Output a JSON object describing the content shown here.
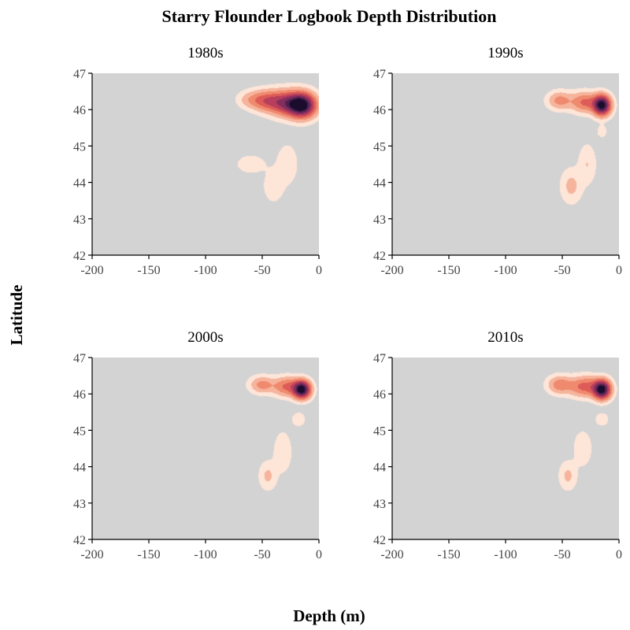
{
  "figure": {
    "title": "Starry Flounder Logbook Depth Distribution",
    "xlabel": "Depth (m)",
    "ylabel": "Latitude"
  },
  "colors": {
    "panel_bg": "#d3d3d3",
    "levels": [
      "#fde5d8",
      "#f6b49c",
      "#ef8a6e",
      "#de5c58",
      "#b73e5c",
      "#842e5e",
      "#4e2150",
      "#1b0c2e"
    ]
  },
  "chart_data": [
    {
      "type": "density2d",
      "panel_title": "1980s",
      "xlim": [
        -200,
        0
      ],
      "ylim": [
        42,
        47
      ],
      "xticks": [
        -200,
        -150,
        -100,
        -50,
        0
      ],
      "yticks": [
        42,
        43,
        44,
        45,
        46,
        47
      ],
      "kernels": [
        {
          "x": -15,
          "y": 46.12,
          "sx": 8,
          "sy": 0.22,
          "w": 1.0
        },
        {
          "x": -30,
          "y": 46.18,
          "sx": 10,
          "sy": 0.22,
          "w": 0.55
        },
        {
          "x": -48,
          "y": 46.25,
          "sx": 9,
          "sy": 0.18,
          "w": 0.35
        },
        {
          "x": -62,
          "y": 46.28,
          "sx": 7,
          "sy": 0.15,
          "w": 0.1
        },
        {
          "x": -28,
          "y": 44.5,
          "sx": 6,
          "sy": 0.35,
          "w": 0.09
        },
        {
          "x": -40,
          "y": 43.9,
          "sx": 6,
          "sy": 0.3,
          "w": 0.08
        },
        {
          "x": -60,
          "y": 44.5,
          "sx": 9,
          "sy": 0.18,
          "w": 0.07
        }
      ]
    },
    {
      "type": "density2d",
      "panel_title": "1990s",
      "xlim": [
        -200,
        0
      ],
      "ylim": [
        42,
        47
      ],
      "xticks": [
        -200,
        -150,
        -100,
        -50,
        0
      ],
      "yticks": [
        42,
        43,
        44,
        45,
        46,
        47
      ],
      "kernels": [
        {
          "x": -15,
          "y": 46.12,
          "sx": 5,
          "sy": 0.18,
          "w": 1.0
        },
        {
          "x": -30,
          "y": 46.2,
          "sx": 8,
          "sy": 0.18,
          "w": 0.35
        },
        {
          "x": -52,
          "y": 46.25,
          "sx": 7,
          "sy": 0.16,
          "w": 0.25
        },
        {
          "x": -15,
          "y": 45.4,
          "sx": 3,
          "sy": 0.12,
          "w": 0.07
        },
        {
          "x": -28,
          "y": 44.5,
          "sx": 5,
          "sy": 0.35,
          "w": 0.1
        },
        {
          "x": -42,
          "y": 43.9,
          "sx": 6,
          "sy": 0.3,
          "w": 0.13
        }
      ]
    },
    {
      "type": "density2d",
      "panel_title": "2000s",
      "xlim": [
        -200,
        0
      ],
      "ylim": [
        42,
        47
      ],
      "xticks": [
        -200,
        -150,
        -100,
        -50,
        0
      ],
      "yticks": [
        42,
        43,
        44,
        45,
        46,
        47
      ],
      "kernels": [
        {
          "x": -15,
          "y": 46.12,
          "sx": 5,
          "sy": 0.16,
          "w": 1.0
        },
        {
          "x": -28,
          "y": 46.2,
          "sx": 8,
          "sy": 0.17,
          "w": 0.35
        },
        {
          "x": -50,
          "y": 46.25,
          "sx": 7,
          "sy": 0.15,
          "w": 0.25
        },
        {
          "x": -18,
          "y": 45.3,
          "sx": 4,
          "sy": 0.13,
          "w": 0.08
        },
        {
          "x": -32,
          "y": 44.4,
          "sx": 5,
          "sy": 0.35,
          "w": 0.1
        },
        {
          "x": -45,
          "y": 43.75,
          "sx": 5,
          "sy": 0.25,
          "w": 0.12
        }
      ]
    },
    {
      "type": "density2d",
      "panel_title": "2010s",
      "xlim": [
        -200,
        0
      ],
      "ylim": [
        42,
        47
      ],
      "xticks": [
        -200,
        -150,
        -100,
        -50,
        0
      ],
      "yticks": [
        42,
        43,
        44,
        45,
        46,
        47
      ],
      "kernels": [
        {
          "x": -15,
          "y": 46.12,
          "sx": 5,
          "sy": 0.17,
          "w": 1.0
        },
        {
          "x": -30,
          "y": 46.2,
          "sx": 9,
          "sy": 0.18,
          "w": 0.38
        },
        {
          "x": -52,
          "y": 46.25,
          "sx": 7,
          "sy": 0.16,
          "w": 0.28
        },
        {
          "x": -15,
          "y": 45.3,
          "sx": 4,
          "sy": 0.12,
          "w": 0.08
        },
        {
          "x": -32,
          "y": 44.5,
          "sx": 5,
          "sy": 0.3,
          "w": 0.1
        },
        {
          "x": -45,
          "y": 43.75,
          "sx": 5,
          "sy": 0.25,
          "w": 0.12
        }
      ]
    }
  ]
}
